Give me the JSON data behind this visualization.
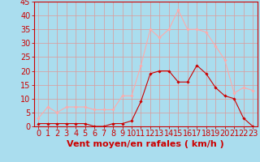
{
  "hours": [
    0,
    1,
    2,
    3,
    4,
    5,
    6,
    7,
    8,
    9,
    10,
    11,
    12,
    13,
    14,
    15,
    16,
    17,
    18,
    19,
    20,
    21,
    22,
    23
  ],
  "wind_avg": [
    1,
    1,
    1,
    1,
    1,
    1,
    0,
    0,
    1,
    1,
    2,
    9,
    19,
    20,
    20,
    16,
    16,
    22,
    19,
    14,
    11,
    10,
    3,
    0
  ],
  "wind_gust": [
    3,
    7,
    5,
    7,
    7,
    7,
    6,
    6,
    6,
    11,
    11,
    22,
    35,
    32,
    35,
    42,
    35,
    35,
    34,
    29,
    24,
    12,
    14,
    13
  ],
  "wind_avg_color": "#cc0000",
  "wind_gust_color": "#ffaaaa",
  "background_color": "#aaddee",
  "grid_color": "#dd9999",
  "xlabel": "Vent moyen/en rafales ( km/h )",
  "ylim": [
    0,
    45
  ],
  "yticks": [
    0,
    5,
    10,
    15,
    20,
    25,
    30,
    35,
    40,
    45
  ],
  "tick_fontsize": 7,
  "label_fontsize": 8
}
